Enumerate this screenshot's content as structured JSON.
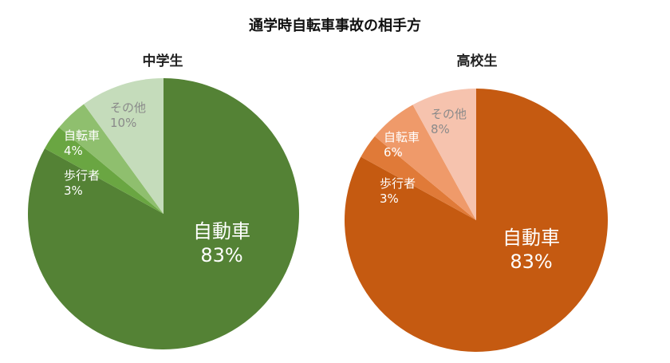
{
  "title": "通学時自転車事故の相手方",
  "chart_data": [
    {
      "type": "pie",
      "title": "中学生",
      "categories": [
        "自動車",
        "歩行者",
        "自転車",
        "その他"
      ],
      "values": [
        83,
        3,
        4,
        10
      ],
      "value_labels": [
        "83%",
        "3%",
        "4%",
        "10%"
      ],
      "colors": [
        "#548235",
        "#6aa642",
        "#8fbf6e",
        "#c5dcbb"
      ],
      "label_colors": [
        "#ffffff",
        "#ffffff",
        "#ffffff",
        "#8a8a8a"
      ]
    },
    {
      "type": "pie",
      "title": "高校生",
      "categories": [
        "自動車",
        "歩行者",
        "自転車",
        "その他"
      ],
      "values": [
        83,
        3,
        6,
        8
      ],
      "value_labels": [
        "83%",
        "3%",
        "6%",
        "8%"
      ],
      "colors": [
        "#c55a11",
        "#e07a38",
        "#ef9a6a",
        "#f6c3ae"
      ],
      "label_colors": [
        "#ffffff",
        "#ffffff",
        "#ffffff",
        "#8a8a8a"
      ]
    }
  ]
}
